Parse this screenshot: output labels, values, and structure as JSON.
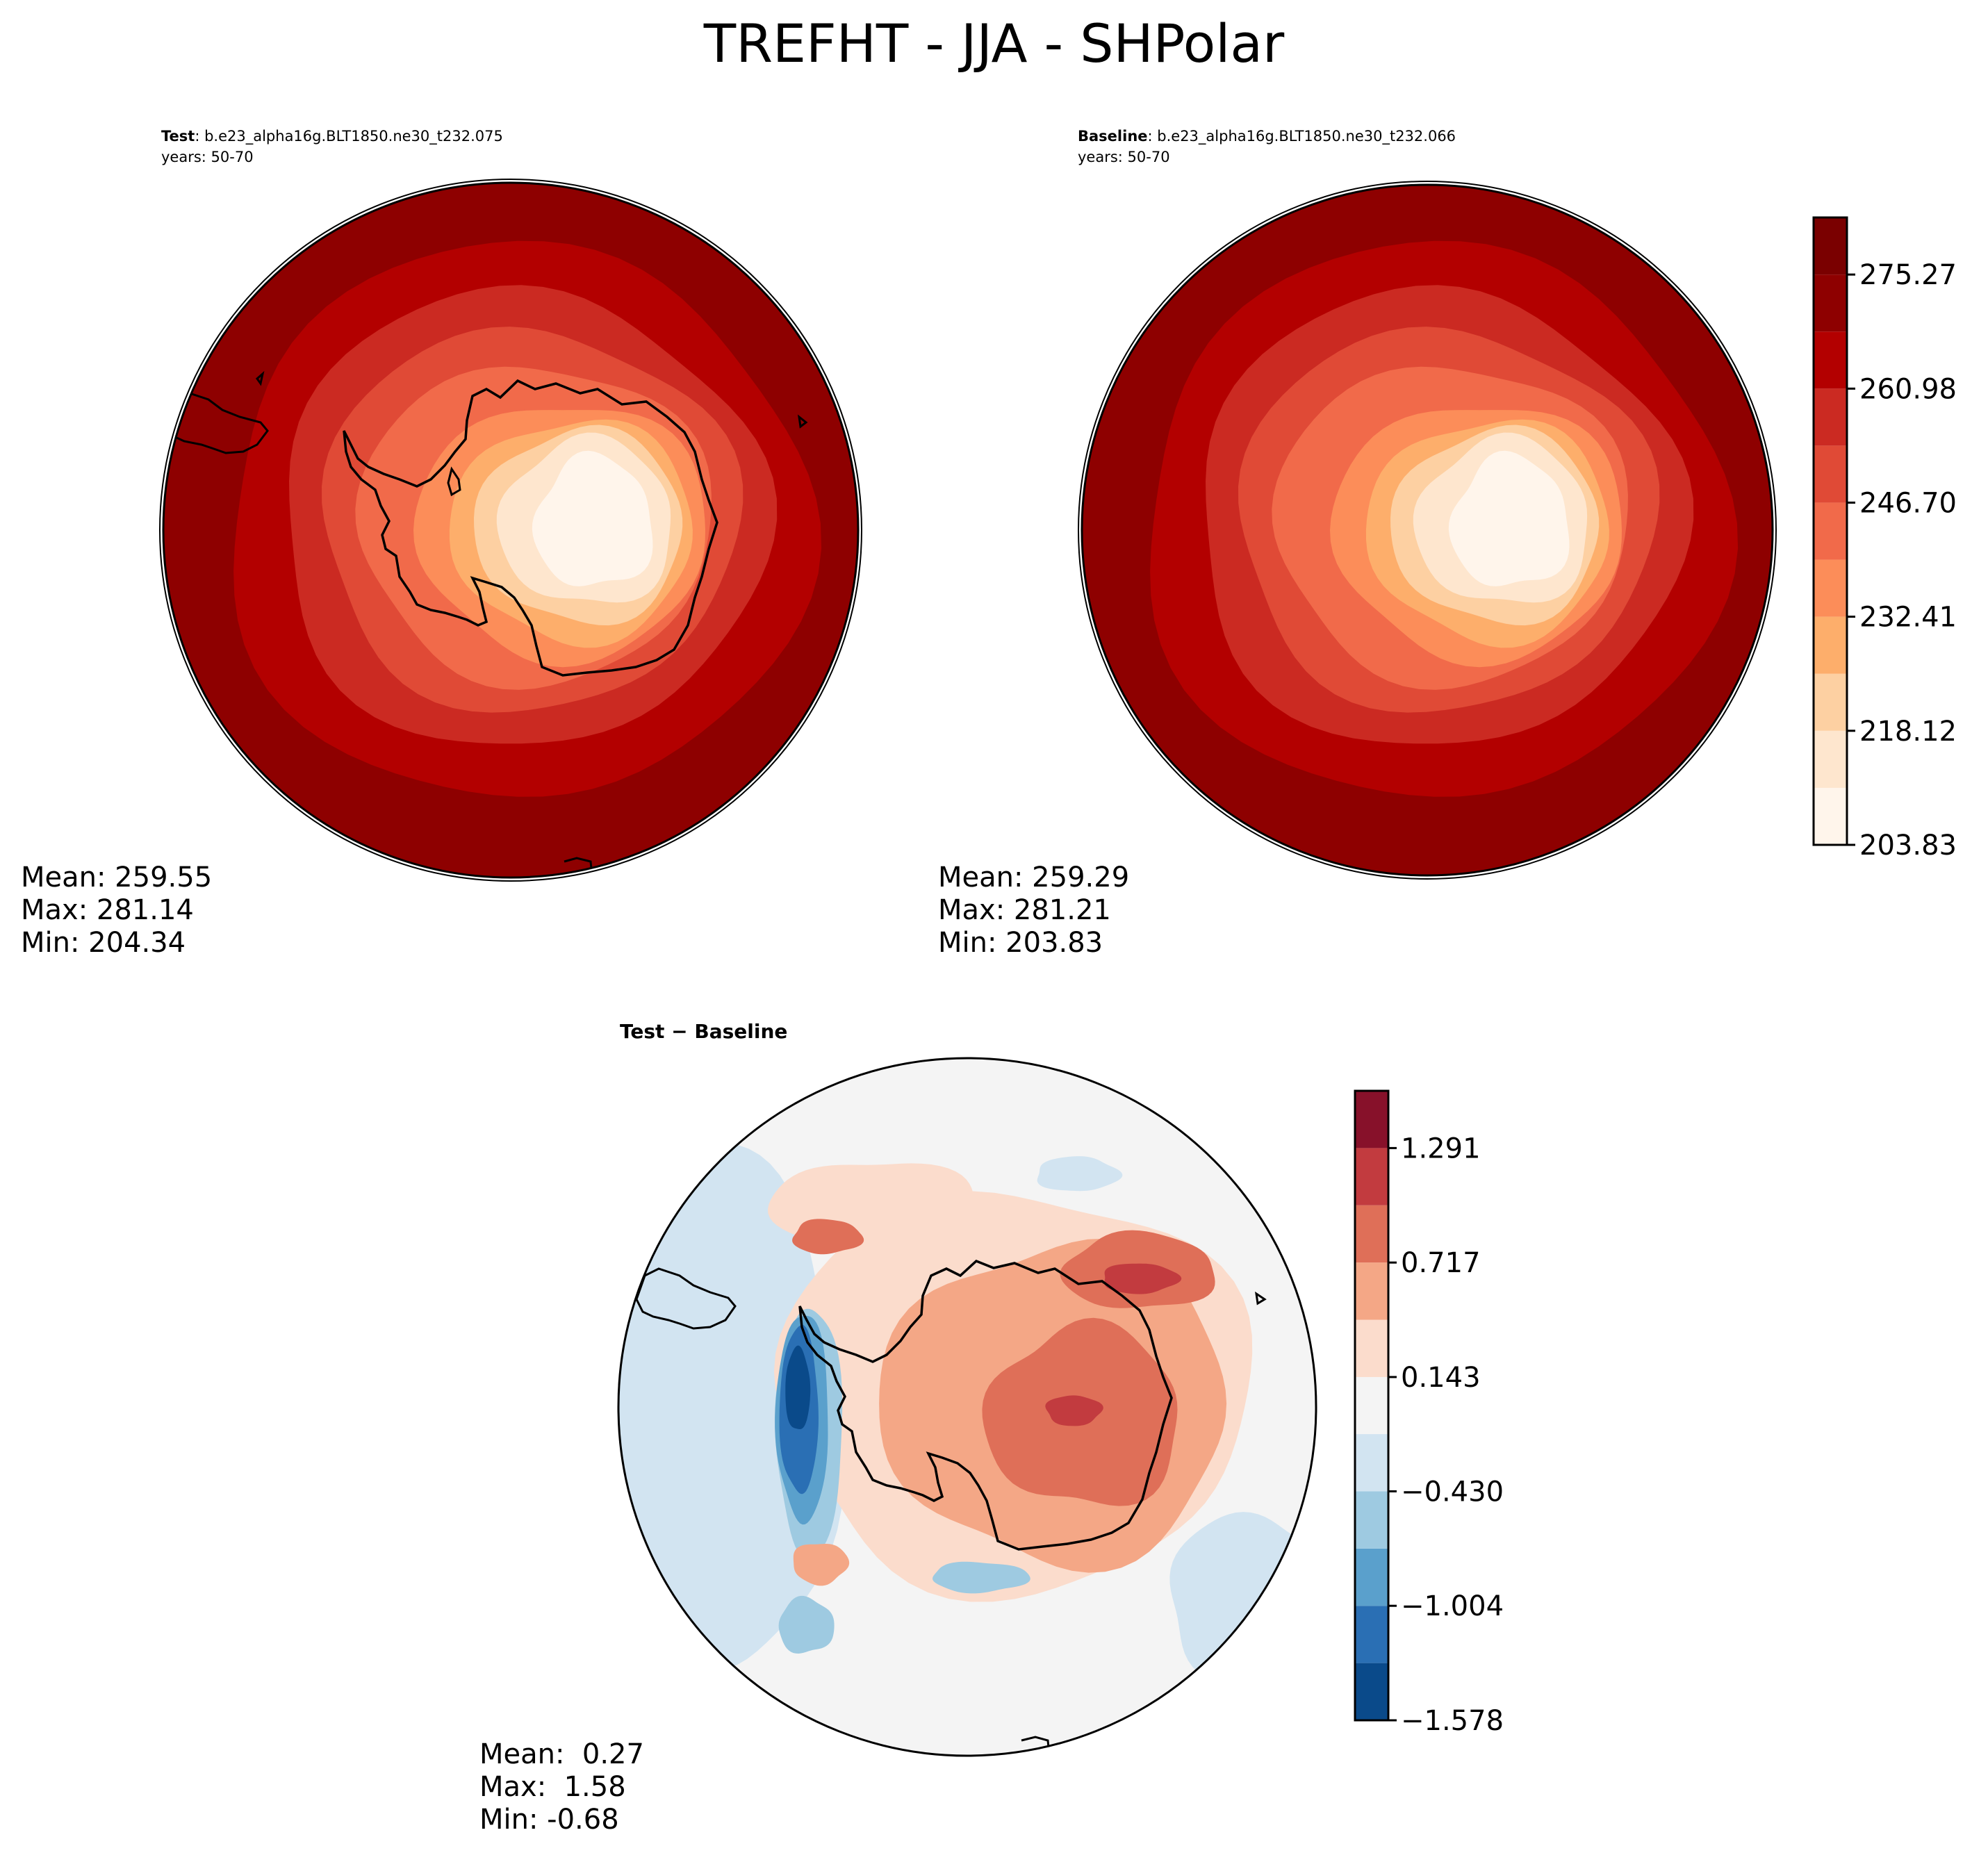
{
  "title": "TREFHT - JJA - SHPolar",
  "panels": {
    "test": {
      "label_bold": "Test",
      "label_rest": ": b.e23_alpha16g.BLT1850.ne30_t232.075",
      "years": "years: 50-70",
      "mean": "Mean: 259.55",
      "max": "Max: 281.14",
      "min": "Min: 204.34"
    },
    "baseline": {
      "label_bold": "Baseline",
      "label_rest": ": b.e23_alpha16g.BLT1850.ne30_t232.066",
      "years": "years: 50-70",
      "mean": "Mean: 259.29",
      "max": "Max: 281.21",
      "min": "Min: 203.83"
    },
    "difference": {
      "title": "Test − Baseline",
      "mean": "Mean:  0.27",
      "max": "Max:  1.58",
      "min": "Min: -0.68"
    }
  },
  "chart_data": [
    {
      "type": "heatmap",
      "projection": "south-polar-stereographic",
      "variable": "TREFHT",
      "season": "JJA",
      "panel": "Test",
      "stats": {
        "mean": 259.55,
        "max": 281.14,
        "min": 204.34
      },
      "colormap": "Reds",
      "levels": [
        203.83,
        210.97,
        218.12,
        225.26,
        232.41,
        239.55,
        246.7,
        253.84,
        260.98,
        268.13,
        275.27,
        282.42
      ],
      "colorbar_ticks": [
        "275.27",
        "260.98",
        "246.70",
        "232.41",
        "218.12",
        "203.83"
      ]
    },
    {
      "type": "heatmap",
      "projection": "south-polar-stereographic",
      "variable": "TREFHT",
      "season": "JJA",
      "panel": "Baseline",
      "stats": {
        "mean": 259.29,
        "max": 281.21,
        "min": 203.83
      },
      "colormap": "Reds",
      "levels": [
        203.83,
        210.97,
        218.12,
        225.26,
        232.41,
        239.55,
        246.7,
        253.84,
        260.98,
        268.13,
        275.27,
        282.42
      ],
      "colorbar_ticks": [
        "275.27",
        "260.98",
        "246.70",
        "232.41",
        "218.12",
        "203.83"
      ]
    },
    {
      "type": "heatmap",
      "projection": "south-polar-stereographic",
      "variable": "TREFHT",
      "season": "JJA",
      "panel": "Test − Baseline",
      "stats": {
        "mean": 0.27,
        "max": 1.58,
        "min": -0.68
      },
      "colormap": "RdBu_r",
      "levels": [
        -1.578,
        -1.291,
        -1.004,
        -0.717,
        -0.43,
        -0.143,
        0.143,
        0.43,
        0.717,
        1.004,
        1.291,
        1.578
      ],
      "colorbar_ticks": [
        "1.291",
        "0.717",
        "0.143",
        "−0.430",
        "−1.004",
        "−1.578"
      ]
    }
  ],
  "colors": {
    "reds": [
      "#fff5eb",
      "#fee6ce",
      "#fdd0a2",
      "#fdae6b",
      "#fc8d59",
      "#f16a4a",
      "#e04a36",
      "#cb2a22",
      "#b30000",
      "#8e0000",
      "#7a0000"
    ],
    "rdbu": [
      "#0a4a8a",
      "#2a6fb4",
      "#5aa0cc",
      "#9ecae1",
      "#d2e4f1",
      "#f4f4f4",
      "#fbdccc",
      "#f4a786",
      "#df6f58",
      "#c23b3f",
      "#87112a"
    ]
  }
}
